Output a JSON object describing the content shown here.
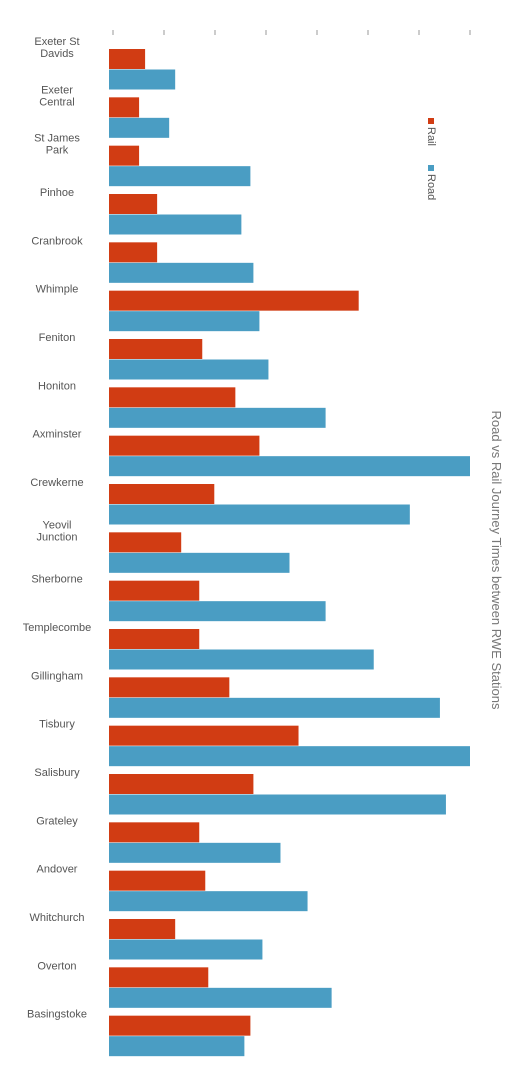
{
  "chart_data": {
    "type": "bar",
    "orientation": "horizontal",
    "title": "Road vs Rail Journey Times between RWE Stations",
    "categories": [
      "Exeter St Davids",
      "Exeter Central",
      "St James Park",
      "Pinhoe",
      "Cranbrook",
      "Whimple",
      "Feniton",
      "Honiton",
      "Axminster",
      "Crewkerne",
      "Yeovil Junction",
      "Sherborne",
      "Templecombe",
      "Gillingham",
      "Tisbury",
      "Salisbury",
      "Grateley",
      "Andover",
      "Whitchurch",
      "Overton",
      "Basingstoke"
    ],
    "category_lines": [
      [
        "Exeter St",
        "Davids"
      ],
      [
        "Exeter",
        "Central"
      ],
      [
        "St James",
        "Park"
      ],
      [
        "Pinhoe"
      ],
      [
        "Cranbrook"
      ],
      [
        "Whimple"
      ],
      [
        "Feniton"
      ],
      [
        "Honiton"
      ],
      [
        "Axminster"
      ],
      [
        "Crewkerne"
      ],
      [
        "Yeovil",
        "Junction"
      ],
      [
        "Sherborne"
      ],
      [
        "Templecombe"
      ],
      [
        "Gillingham"
      ],
      [
        "Tisbury"
      ],
      [
        "Salisbury"
      ],
      [
        "Grateley"
      ],
      [
        "Andover"
      ],
      [
        "Whitchurch"
      ],
      [
        "Overton"
      ],
      [
        "Basingstoke"
      ]
    ],
    "series": [
      {
        "name": "Rail",
        "color": "#d13c13",
        "values": [
          12,
          10,
          10,
          16,
          16,
          83,
          31,
          42,
          50,
          35,
          24,
          30,
          30,
          40,
          63,
          48,
          30,
          32,
          22,
          33,
          47
        ]
      },
      {
        "name": "Road",
        "color": "#4a9dc3",
        "values": [
          22,
          20,
          47,
          44,
          48,
          50,
          53,
          72,
          120,
          100,
          60,
          72,
          88,
          110,
          120,
          112,
          57,
          66,
          51,
          74,
          45
        ]
      }
    ],
    "xlim": [
      0,
      120
    ],
    "x_tick_labels": [
      "",
      "",
      "",
      "",
      "",
      "",
      "",
      ""
    ],
    "legend": {
      "position": "top-right",
      "orientation": "vertical-rotated"
    },
    "grid": false
  }
}
